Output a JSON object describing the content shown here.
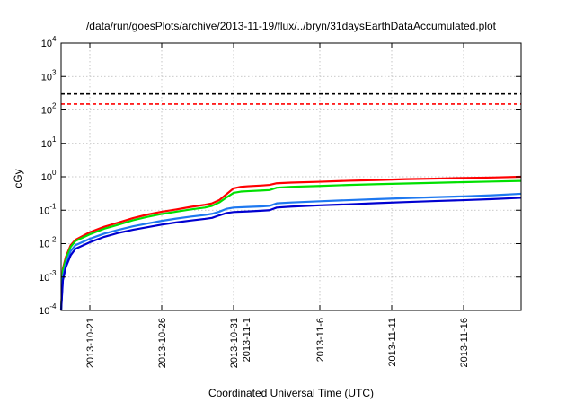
{
  "chart_data": {
    "type": "line",
    "title": "/data/run/goesPlots/archive/2013-11-19/flux/../bryn/31daysEarthDataAccumulated.plot",
    "xlabel": "Coordinated Universal Time (UTC)",
    "ylabel": "cGy",
    "yscale": "log",
    "ylim": [
      0.0001,
      10000
    ],
    "xlim": [
      "2013-10-19",
      "2013-11-20"
    ],
    "grid": true,
    "legend": "none",
    "yticks": [
      {
        "base": "10",
        "exp": "-4",
        "value": 0.0001
      },
      {
        "base": "10",
        "exp": "-3",
        "value": 0.001
      },
      {
        "base": "10",
        "exp": "-2",
        "value": 0.01
      },
      {
        "base": "10",
        "exp": "-1",
        "value": 0.1
      },
      {
        "base": "10",
        "exp": "0",
        "value": 1
      },
      {
        "base": "10",
        "exp": "1",
        "value": 10
      },
      {
        "base": "10",
        "exp": "2",
        "value": 100
      },
      {
        "base": "10",
        "exp": "3",
        "value": 1000
      },
      {
        "base": "10",
        "exp": "4",
        "value": 10000
      }
    ],
    "xticks": [
      {
        "lines": [
          "2013-10-21"
        ],
        "value": "2013-10-21"
      },
      {
        "lines": [
          "2013-10-26"
        ],
        "value": "2013-10-26"
      },
      {
        "lines": [
          "2013-10-31",
          "2013-11-1"
        ],
        "value": "2013-10-31"
      },
      {
        "lines": [
          "2013-11-6"
        ],
        "value": "2013-11-06"
      },
      {
        "lines": [
          "2013-11-11"
        ],
        "value": "2013-11-11"
      },
      {
        "lines": [
          "2013-11-16"
        ],
        "value": "2013-11-16"
      }
    ],
    "reference_lines": [
      {
        "value": 300,
        "color": "#000000",
        "style": "dashed"
      },
      {
        "value": 150,
        "color": "#ff0000",
        "style": "dashed"
      }
    ],
    "series": [
      {
        "color": "#ff0000",
        "points": [
          [
            "2013-10-19T00:00",
            0.0001
          ],
          [
            "2013-10-19T03:00",
            0.0018
          ],
          [
            "2013-10-19T08:00",
            0.004
          ],
          [
            "2013-10-19T16:00",
            0.009
          ],
          [
            "2013-10-20T00:00",
            0.013
          ],
          [
            "2013-10-21T00:00",
            0.022
          ],
          [
            "2013-10-22T00:00",
            0.032
          ],
          [
            "2013-10-23T00:00",
            0.043
          ],
          [
            "2013-10-24T00:00",
            0.058
          ],
          [
            "2013-10-25T00:00",
            0.074
          ],
          [
            "2013-10-26T00:00",
            0.09
          ],
          [
            "2013-10-27T00:00",
            0.105
          ],
          [
            "2013-10-28T00:00",
            0.125
          ],
          [
            "2013-10-29T00:00",
            0.145
          ],
          [
            "2013-10-29T12:00",
            0.16
          ],
          [
            "2013-10-30T00:00",
            0.2
          ],
          [
            "2013-10-30T12:00",
            0.3
          ],
          [
            "2013-10-31T00:00",
            0.45
          ],
          [
            "2013-10-31T12:00",
            0.5
          ],
          [
            "2013-11-01T00:00",
            0.52
          ],
          [
            "2013-11-02T00:00",
            0.55
          ],
          [
            "2013-11-02T12:00",
            0.57
          ],
          [
            "2013-11-03T00:00",
            0.64
          ],
          [
            "2013-11-04T00:00",
            0.67
          ],
          [
            "2013-11-06T00:00",
            0.71
          ],
          [
            "2013-11-08T00:00",
            0.76
          ],
          [
            "2013-11-10T00:00",
            0.8
          ],
          [
            "2013-11-12T00:00",
            0.85
          ],
          [
            "2013-11-14T00:00",
            0.88
          ],
          [
            "2013-11-16T00:00",
            0.92
          ],
          [
            "2013-11-18T00:00",
            0.95
          ],
          [
            "2013-11-20T00:00",
            1.0
          ]
        ]
      },
      {
        "color": "#00e000",
        "points": [
          [
            "2013-10-19T00:00",
            0.0001
          ],
          [
            "2013-10-19T03:00",
            0.0016
          ],
          [
            "2013-10-19T08:00",
            0.0035
          ],
          [
            "2013-10-19T16:00",
            0.008
          ],
          [
            "2013-10-20T00:00",
            0.012
          ],
          [
            "2013-10-21T00:00",
            0.019
          ],
          [
            "2013-10-22T00:00",
            0.028
          ],
          [
            "2013-10-23T00:00",
            0.037
          ],
          [
            "2013-10-24T00:00",
            0.05
          ],
          [
            "2013-10-25T00:00",
            0.063
          ],
          [
            "2013-10-26T00:00",
            0.077
          ],
          [
            "2013-10-27T00:00",
            0.09
          ],
          [
            "2013-10-28T00:00",
            0.105
          ],
          [
            "2013-10-29T00:00",
            0.12
          ],
          [
            "2013-10-29T12:00",
            0.135
          ],
          [
            "2013-10-30T00:00",
            0.17
          ],
          [
            "2013-10-30T12:00",
            0.24
          ],
          [
            "2013-10-31T00:00",
            0.33
          ],
          [
            "2013-10-31T12:00",
            0.36
          ],
          [
            "2013-11-01T00:00",
            0.37
          ],
          [
            "2013-11-02T00:00",
            0.39
          ],
          [
            "2013-11-02T12:00",
            0.4
          ],
          [
            "2013-11-03T00:00",
            0.47
          ],
          [
            "2013-11-04T00:00",
            0.5
          ],
          [
            "2013-11-06T00:00",
            0.53
          ],
          [
            "2013-11-08T00:00",
            0.57
          ],
          [
            "2013-11-10T00:00",
            0.6
          ],
          [
            "2013-11-12T00:00",
            0.63
          ],
          [
            "2013-11-14T00:00",
            0.66
          ],
          [
            "2013-11-16T00:00",
            0.69
          ],
          [
            "2013-11-18T00:00",
            0.72
          ],
          [
            "2013-11-20T00:00",
            0.75
          ]
        ]
      },
      {
        "color": "#1e78f0",
        "points": [
          [
            "2013-10-19T00:00",
            0.0001
          ],
          [
            "2013-10-19T03:00",
            0.001
          ],
          [
            "2013-10-19T08:00",
            0.0025
          ],
          [
            "2013-10-19T16:00",
            0.006
          ],
          [
            "2013-10-20T00:00",
            0.009
          ],
          [
            "2013-10-21T00:00",
            0.014
          ],
          [
            "2013-10-22T00:00",
            0.02
          ],
          [
            "2013-10-23T00:00",
            0.026
          ],
          [
            "2013-10-24T00:00",
            0.033
          ],
          [
            "2013-10-25T00:00",
            0.04
          ],
          [
            "2013-10-26T00:00",
            0.048
          ],
          [
            "2013-10-27T00:00",
            0.056
          ],
          [
            "2013-10-28T00:00",
            0.064
          ],
          [
            "2013-10-29T00:00",
            0.072
          ],
          [
            "2013-10-29T12:00",
            0.078
          ],
          [
            "2013-10-30T00:00",
            0.09
          ],
          [
            "2013-10-30T12:00",
            0.11
          ],
          [
            "2013-10-31T00:00",
            0.12
          ],
          [
            "2013-11-01T00:00",
            0.125
          ],
          [
            "2013-11-02T00:00",
            0.13
          ],
          [
            "2013-11-02T12:00",
            0.135
          ],
          [
            "2013-11-03T00:00",
            0.16
          ],
          [
            "2013-11-04T00:00",
            0.17
          ],
          [
            "2013-11-06T00:00",
            0.185
          ],
          [
            "2013-11-08T00:00",
            0.2
          ],
          [
            "2013-11-10T00:00",
            0.215
          ],
          [
            "2013-11-12T00:00",
            0.23
          ],
          [
            "2013-11-14T00:00",
            0.245
          ],
          [
            "2013-11-16T00:00",
            0.26
          ],
          [
            "2013-11-18T00:00",
            0.28
          ],
          [
            "2013-11-20T00:00",
            0.31
          ]
        ]
      },
      {
        "color": "#0000d0",
        "points": [
          [
            "2013-10-19T00:00",
            0.0001
          ],
          [
            "2013-10-19T03:00",
            0.0008
          ],
          [
            "2013-10-19T08:00",
            0.002
          ],
          [
            "2013-10-19T16:00",
            0.0045
          ],
          [
            "2013-10-20T00:00",
            0.007
          ],
          [
            "2013-10-21T00:00",
            0.011
          ],
          [
            "2013-10-22T00:00",
            0.016
          ],
          [
            "2013-10-23T00:00",
            0.021
          ],
          [
            "2013-10-24T00:00",
            0.026
          ],
          [
            "2013-10-25T00:00",
            0.031
          ],
          [
            "2013-10-26T00:00",
            0.037
          ],
          [
            "2013-10-27T00:00",
            0.043
          ],
          [
            "2013-10-28T00:00",
            0.049
          ],
          [
            "2013-10-29T00:00",
            0.055
          ],
          [
            "2013-10-29T12:00",
            0.059
          ],
          [
            "2013-10-30T00:00",
            0.07
          ],
          [
            "2013-10-30T12:00",
            0.082
          ],
          [
            "2013-10-31T00:00",
            0.088
          ],
          [
            "2013-11-01T00:00",
            0.092
          ],
          [
            "2013-11-02T00:00",
            0.097
          ],
          [
            "2013-11-02T12:00",
            0.1
          ],
          [
            "2013-11-03T00:00",
            0.12
          ],
          [
            "2013-11-04T00:00",
            0.128
          ],
          [
            "2013-11-06T00:00",
            0.14
          ],
          [
            "2013-11-08T00:00",
            0.15
          ],
          [
            "2013-11-10T00:00",
            0.163
          ],
          [
            "2013-11-12T00:00",
            0.175
          ],
          [
            "2013-11-14T00:00",
            0.188
          ],
          [
            "2013-11-16T00:00",
            0.2
          ],
          [
            "2013-11-18T00:00",
            0.215
          ],
          [
            "2013-11-20T00:00",
            0.235
          ]
        ]
      }
    ]
  }
}
